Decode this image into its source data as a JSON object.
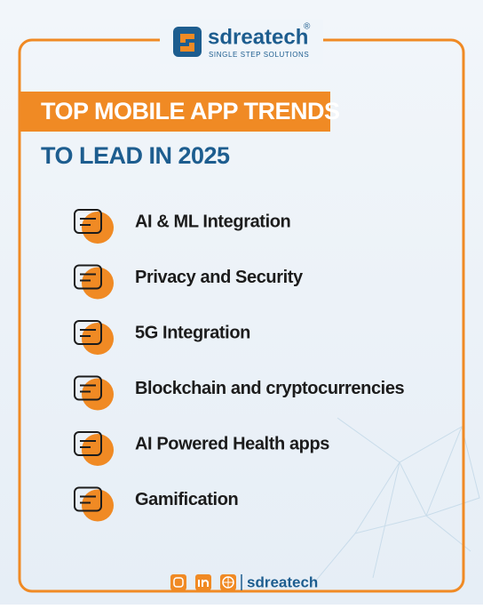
{
  "brand": {
    "name": "sdreatech",
    "mark": "®",
    "tagline": "SINGLE STEP SOLUTIONS"
  },
  "title": {
    "line1": "TOP MOBILE APP TRENDS",
    "line2": "TO LEAD IN 2025"
  },
  "items": [
    "AI & ML Integration",
    "Privacy and Security",
    "5G Integration",
    "Blockchain and cryptocurrencies",
    "AI Powered Health apps",
    "Gamification"
  ],
  "footer": {
    "handle": "sdreatech"
  }
}
